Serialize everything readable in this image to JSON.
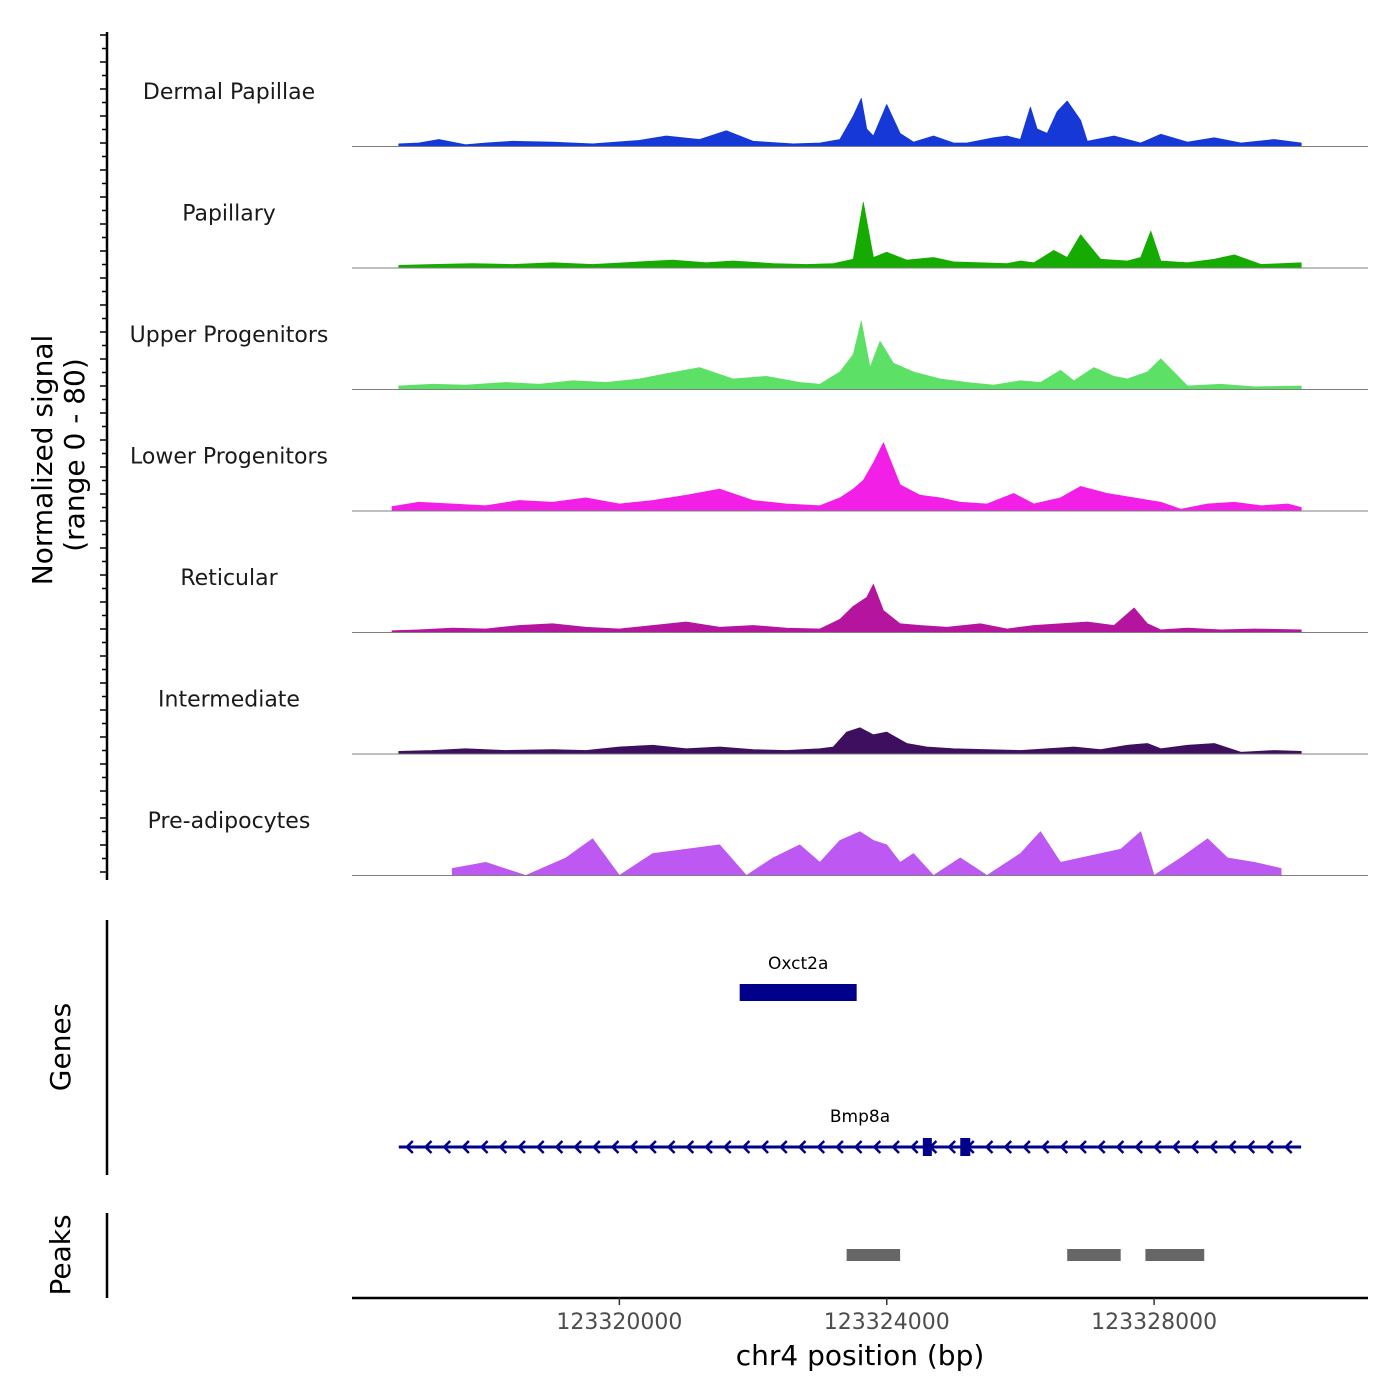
{
  "chart_data": {
    "type": "area",
    "title": "",
    "xlabel": "chr4 position (bp)",
    "xlim": [
      123316000,
      123331200
    ],
    "x_ticks": [
      "123320000",
      "123324000",
      "123328000"
    ],
    "x_tick_values": [
      123320000,
      123324000,
      123328000
    ],
    "ylabel_line1": "Normalized signal",
    "ylabel_line2": "(range 0 - 80)",
    "ylim": [
      0,
      80
    ],
    "tracks": [
      {
        "name": "Dermal Papillae",
        "color": "#1538d6",
        "x": [
          123316700,
          123317000,
          123317300,
          123317700,
          123318000,
          123318400,
          123319000,
          123319600,
          123320300,
          123320700,
          123321200,
          123321600,
          123322000,
          123322600,
          123323000,
          123323300,
          123323500,
          123323620,
          123323700,
          123323800,
          123324000,
          123324200,
          123324400,
          123324700,
          123325000,
          123325200,
          123325600,
          123325800,
          123326000,
          123326150,
          123326250,
          123326400,
          123326550,
          123326700,
          123326900,
          123327000,
          123327400,
          123327800,
          123328100,
          123328500,
          123328900,
          123329300,
          123329800,
          123330200
        ],
        "y": [
          3,
          4,
          8,
          2,
          4,
          6,
          5,
          3,
          7,
          12,
          8,
          18,
          6,
          3,
          4,
          8,
          35,
          55,
          20,
          12,
          48,
          15,
          5,
          12,
          4,
          4,
          10,
          12,
          8,
          45,
          20,
          15,
          40,
          52,
          30,
          6,
          12,
          4,
          14,
          5,
          10,
          4,
          8,
          4
        ]
      },
      {
        "name": "Papillary",
        "color": "#16ab00",
        "x": [
          123316700,
          123317200,
          123317800,
          123318400,
          123319000,
          123319600,
          123320300,
          123320800,
          123321300,
          123321700,
          123322300,
          123322800,
          123323200,
          123323500,
          123323650,
          123323800,
          123324000,
          123324300,
          123324700,
          123325000,
          123325400,
          123325800,
          123326000,
          123326200,
          123326500,
          123326700,
          123326900,
          123327200,
          123327600,
          123327800,
          123327950,
          123328100,
          123328500,
          123328900,
          123329200,
          123329600,
          123330200
        ],
        "y": [
          3,
          4,
          5,
          4,
          6,
          4,
          7,
          9,
          6,
          8,
          5,
          4,
          5,
          10,
          75,
          12,
          18,
          9,
          12,
          7,
          6,
          5,
          8,
          6,
          20,
          12,
          38,
          10,
          8,
          12,
          42,
          8,
          6,
          10,
          15,
          4,
          6
        ]
      },
      {
        "name": "Upper Progenitors",
        "color": "#5ce065",
        "x": [
          123316700,
          123317200,
          123317700,
          123318300,
          123318800,
          123319300,
          123319800,
          123320300,
          123320700,
          123321200,
          123321700,
          123322200,
          123322700,
          123323000,
          123323300,
          123323500,
          123323620,
          123323750,
          123323900,
          123324100,
          123324400,
          123324800,
          123325200,
          123325600,
          123326000,
          123326300,
          123326600,
          123326800,
          123327100,
          123327400,
          123327600,
          123327900,
          123328100,
          123328500,
          123329000,
          123329500,
          123330200
        ],
        "y": [
          4,
          6,
          5,
          8,
          6,
          10,
          8,
          12,
          18,
          25,
          12,
          15,
          8,
          6,
          20,
          40,
          78,
          25,
          55,
          30,
          20,
          12,
          8,
          5,
          10,
          8,
          22,
          10,
          25,
          15,
          12,
          20,
          35,
          4,
          6,
          3,
          4
        ]
      },
      {
        "name": "Lower Progenitors",
        "color": "#f21fe7",
        "x": [
          123316600,
          123317000,
          123317500,
          123318000,
          123318500,
          123319000,
          123319500,
          123320000,
          123320500,
          123321000,
          123321500,
          123322000,
          123322500,
          123323000,
          123323300,
          123323500,
          123323650,
          123323800,
          123323950,
          123324200,
          123324500,
          123324800,
          123325100,
          123325500,
          123325900,
          123326200,
          123326600,
          123326900,
          123327300,
          123327700,
          123328100,
          123328400,
          123328800,
          123329200,
          123329600,
          123330000,
          123330200
        ],
        "y": [
          5,
          10,
          8,
          6,
          12,
          10,
          15,
          8,
          12,
          18,
          25,
          12,
          8,
          6,
          15,
          25,
          35,
          55,
          78,
          30,
          18,
          15,
          10,
          8,
          20,
          8,
          15,
          28,
          20,
          15,
          10,
          2,
          8,
          10,
          6,
          8,
          4
        ]
      },
      {
        "name": "Reticular",
        "color": "#b5149e",
        "x": [
          123316600,
          123317000,
          123317500,
          123318000,
          123318500,
          123319000,
          123319500,
          123320000,
          123320500,
          123321000,
          123321500,
          123322000,
          123322500,
          123323000,
          123323300,
          123323500,
          123323700,
          123323800,
          123323950,
          123324200,
          123324500,
          123324900,
          123325400,
          123325800,
          123326200,
          123326600,
          123327000,
          123327400,
          123327700,
          123327900,
          123328100,
          123328500,
          123329000,
          123329500,
          123330200
        ],
        "y": [
          2,
          3,
          5,
          4,
          8,
          10,
          6,
          4,
          8,
          12,
          6,
          8,
          5,
          4,
          15,
          30,
          40,
          55,
          25,
          10,
          8,
          6,
          10,
          4,
          8,
          10,
          12,
          8,
          28,
          10,
          3,
          5,
          3,
          4,
          3
        ]
      },
      {
        "name": "Intermediate",
        "color": "#3d0f5e",
        "x": [
          123316700,
          123317200,
          123317700,
          123318300,
          123319000,
          123319500,
          123320000,
          123320500,
          123321000,
          123321500,
          123322000,
          123322500,
          123323000,
          123323200,
          123323400,
          123323600,
          123323800,
          123324000,
          123324300,
          123324600,
          123325000,
          123325500,
          123326000,
          123326400,
          123326800,
          123327200,
          123327600,
          123327900,
          123328100,
          123328500,
          123328900,
          123329300,
          123329800,
          123330200
        ],
        "y": [
          3,
          4,
          6,
          4,
          5,
          4,
          8,
          10,
          6,
          8,
          5,
          4,
          6,
          8,
          25,
          30,
          22,
          25,
          12,
          8,
          6,
          5,
          4,
          6,
          8,
          5,
          10,
          12,
          6,
          10,
          12,
          2,
          4,
          3
        ]
      },
      {
        "name": "Pre-adipocytes",
        "color": "#bd58f2",
        "x": [
          123317500,
          123318000,
          123318600,
          123319200,
          123319600,
          123320000,
          123320500,
          123321000,
          123321500,
          123321900,
          123322300,
          123322700,
          123323000,
          123323300,
          123323600,
          123323800,
          123324000,
          123324200,
          123324400,
          123324700,
          123325100,
          123325500,
          123326000,
          123326300,
          123326600,
          123326900,
          123327200,
          123327500,
          123327800,
          123328000,
          123328400,
          123328800,
          123329100,
          123329500,
          123329900
        ],
        "y": [
          8,
          15,
          0,
          20,
          42,
          0,
          25,
          30,
          35,
          0,
          20,
          35,
          15,
          40,
          50,
          40,
          35,
          15,
          25,
          0,
          20,
          0,
          25,
          50,
          15,
          20,
          25,
          30,
          50,
          0,
          20,
          42,
          20,
          15,
          8
        ]
      }
    ],
    "genes": [
      {
        "name": "Oxct2a",
        "start": 123321800,
        "end": 123323550,
        "strand": "-"
      },
      {
        "name": "Bmp8a",
        "start": 123316700,
        "end": 123330200,
        "strand": "-",
        "exons": [
          [
            123324540,
            123324650
          ],
          [
            123325100,
            123325250
          ]
        ]
      }
    ],
    "genes_label": "Genes",
    "peaks": [
      {
        "start": 123323400,
        "end": 123324200
      },
      {
        "start": 123326700,
        "end": 123327500
      },
      {
        "start": 123327870,
        "end": 123328750
      }
    ],
    "peaks_label": "Peaks"
  }
}
